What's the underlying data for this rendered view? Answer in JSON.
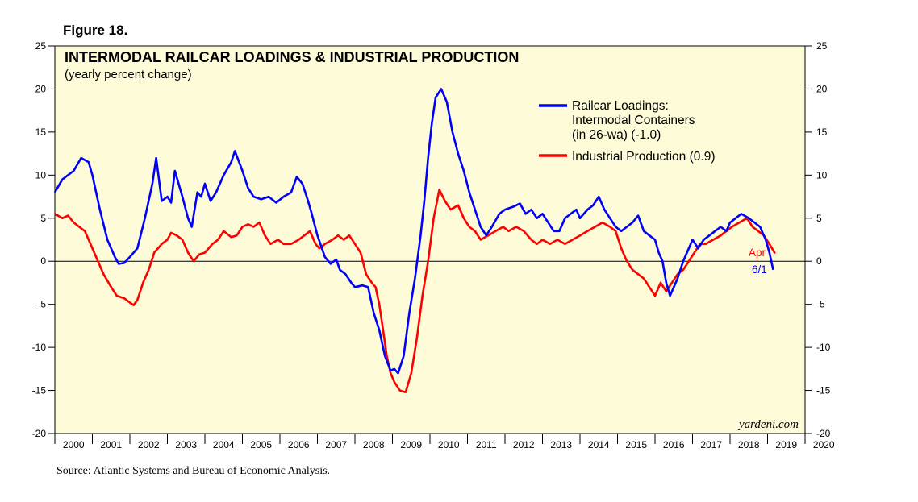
{
  "figure_label": "Figure 18.",
  "source": "Source: Atlantic Systems and Bureau of Economic Analysis.",
  "brand": "yardeni.com",
  "colors": {
    "background": "#fdfbd8",
    "blue": "#0000ff",
    "red": "#ff0000"
  },
  "chart_data": {
    "type": "line",
    "title": "INTERMODAL RAILCAR LOADINGS & INDUSTRIAL PRODUCTION",
    "subtitle": "(yearly percent change)",
    "xlabel": "",
    "ylabel": "",
    "xlim": [
      2000,
      2020
    ],
    "ylim": [
      -20,
      25
    ],
    "y_ticks": [
      25,
      20,
      15,
      10,
      5,
      0,
      -5,
      -10,
      -15,
      -20
    ],
    "x_tick_labels": [
      "2000",
      "2001",
      "2002",
      "2003",
      "2004",
      "2005",
      "2006",
      "2007",
      "2008",
      "2009",
      "2010",
      "2011",
      "2012",
      "2013",
      "2014",
      "2015",
      "2016",
      "2017",
      "2018",
      "2019",
      "2020"
    ],
    "zero_line": true,
    "series": [
      {
        "name": "Railcar Loadings: Intermodal Containers (in 26-wa) (-1.0)",
        "legend_lines": [
          "Railcar Loadings:",
          "Intermodal Containers",
          "(in 26-wa) (-1.0)"
        ],
        "color": "#0000ff",
        "end_label": "6/1",
        "points": [
          [
            2000.0,
            8.0
          ],
          [
            2000.2,
            9.5
          ],
          [
            2000.5,
            10.5
          ],
          [
            2000.7,
            12.0
          ],
          [
            2000.9,
            11.5
          ],
          [
            2001.0,
            10.0
          ],
          [
            2001.2,
            6.0
          ],
          [
            2001.4,
            2.5
          ],
          [
            2001.6,
            0.5
          ],
          [
            2001.7,
            -0.3
          ],
          [
            2001.85,
            -0.2
          ],
          [
            2002.0,
            0.5
          ],
          [
            2002.2,
            1.5
          ],
          [
            2002.4,
            5.0
          ],
          [
            2002.6,
            9.0
          ],
          [
            2002.7,
            12.0
          ],
          [
            2002.85,
            7.0
          ],
          [
            2003.0,
            7.5
          ],
          [
            2003.1,
            6.8
          ],
          [
            2003.2,
            10.5
          ],
          [
            2003.4,
            7.5
          ],
          [
            2003.55,
            5.0
          ],
          [
            2003.65,
            4.0
          ],
          [
            2003.8,
            8.0
          ],
          [
            2003.9,
            7.5
          ],
          [
            2004.0,
            9.0
          ],
          [
            2004.15,
            7.0
          ],
          [
            2004.3,
            8.0
          ],
          [
            2004.5,
            10.0
          ],
          [
            2004.7,
            11.5
          ],
          [
            2004.8,
            12.8
          ],
          [
            2005.0,
            10.5
          ],
          [
            2005.15,
            8.5
          ],
          [
            2005.3,
            7.5
          ],
          [
            2005.5,
            7.2
          ],
          [
            2005.7,
            7.5
          ],
          [
            2005.9,
            6.8
          ],
          [
            2006.1,
            7.5
          ],
          [
            2006.3,
            8.0
          ],
          [
            2006.45,
            9.8
          ],
          [
            2006.6,
            9.0
          ],
          [
            2006.75,
            7.0
          ],
          [
            2006.85,
            5.5
          ],
          [
            2007.0,
            3.0
          ],
          [
            2007.2,
            0.5
          ],
          [
            2007.35,
            -0.3
          ],
          [
            2007.5,
            0.2
          ],
          [
            2007.6,
            -1.0
          ],
          [
            2007.75,
            -1.5
          ],
          [
            2007.9,
            -2.5
          ],
          [
            2008.0,
            -3.0
          ],
          [
            2008.2,
            -2.8
          ],
          [
            2008.35,
            -3.0
          ],
          [
            2008.5,
            -6.0
          ],
          [
            2008.65,
            -8.0
          ],
          [
            2008.8,
            -11.0
          ],
          [
            2008.95,
            -12.7
          ],
          [
            2009.05,
            -12.5
          ],
          [
            2009.15,
            -13.0
          ],
          [
            2009.3,
            -11.0
          ],
          [
            2009.45,
            -6.0
          ],
          [
            2009.6,
            -2.0
          ],
          [
            2009.75,
            3.0
          ],
          [
            2009.85,
            7.0
          ],
          [
            2009.95,
            12.0
          ],
          [
            2010.05,
            16.0
          ],
          [
            2010.15,
            19.0
          ],
          [
            2010.3,
            20.0
          ],
          [
            2010.45,
            18.5
          ],
          [
            2010.6,
            15.0
          ],
          [
            2010.75,
            12.5
          ],
          [
            2010.9,
            10.5
          ],
          [
            2011.05,
            8.0
          ],
          [
            2011.2,
            6.0
          ],
          [
            2011.35,
            4.0
          ],
          [
            2011.5,
            3.0
          ],
          [
            2011.65,
            4.0
          ],
          [
            2011.85,
            5.5
          ],
          [
            2012.0,
            6.0
          ],
          [
            2012.2,
            6.3
          ],
          [
            2012.4,
            6.7
          ],
          [
            2012.55,
            5.5
          ],
          [
            2012.7,
            6.0
          ],
          [
            2012.85,
            5.0
          ],
          [
            2013.0,
            5.5
          ],
          [
            2013.15,
            4.5
          ],
          [
            2013.3,
            3.5
          ],
          [
            2013.45,
            3.5
          ],
          [
            2013.6,
            5.0
          ],
          [
            2013.75,
            5.5
          ],
          [
            2013.9,
            6.0
          ],
          [
            2014.0,
            5.0
          ],
          [
            2014.2,
            6.0
          ],
          [
            2014.35,
            6.5
          ],
          [
            2014.5,
            7.5
          ],
          [
            2014.65,
            6.0
          ],
          [
            2014.8,
            5.0
          ],
          [
            2014.95,
            4.0
          ],
          [
            2015.1,
            3.5
          ],
          [
            2015.25,
            4.0
          ],
          [
            2015.4,
            4.5
          ],
          [
            2015.55,
            5.3
          ],
          [
            2015.7,
            3.5
          ],
          [
            2015.85,
            3.0
          ],
          [
            2016.0,
            2.5
          ],
          [
            2016.1,
            1.0
          ],
          [
            2016.2,
            0.0
          ],
          [
            2016.3,
            -2.5
          ],
          [
            2016.4,
            -4.0
          ],
          [
            2016.5,
            -3.0
          ],
          [
            2016.6,
            -2.0
          ],
          [
            2016.75,
            0.0
          ],
          [
            2016.9,
            1.5
          ],
          [
            2017.0,
            2.5
          ],
          [
            2017.15,
            1.5
          ],
          [
            2017.3,
            2.5
          ],
          [
            2017.45,
            3.0
          ],
          [
            2017.6,
            3.5
          ],
          [
            2017.75,
            4.0
          ],
          [
            2017.9,
            3.5
          ],
          [
            2018.0,
            4.5
          ],
          [
            2018.15,
            5.0
          ],
          [
            2018.3,
            5.5
          ],
          [
            2018.5,
            5.0
          ],
          [
            2018.65,
            4.5
          ],
          [
            2018.8,
            4.0
          ],
          [
            2018.95,
            2.5
          ],
          [
            2019.05,
            1.0
          ],
          [
            2019.15,
            -1.0
          ]
        ]
      },
      {
        "name": "Industrial Production (0.9)",
        "legend_lines": [
          "Industrial Production (0.9)"
        ],
        "color": "#ff0000",
        "end_label": "Apr",
        "points": [
          [
            2000.0,
            5.5
          ],
          [
            2000.2,
            5.0
          ],
          [
            2000.35,
            5.3
          ],
          [
            2000.5,
            4.5
          ],
          [
            2000.65,
            4.0
          ],
          [
            2000.8,
            3.5
          ],
          [
            2000.95,
            2.0
          ],
          [
            2001.1,
            0.5
          ],
          [
            2001.3,
            -1.5
          ],
          [
            2001.5,
            -3.0
          ],
          [
            2001.65,
            -4.0
          ],
          [
            2001.85,
            -4.3
          ],
          [
            2002.0,
            -4.8
          ],
          [
            2002.1,
            -5.1
          ],
          [
            2002.2,
            -4.5
          ],
          [
            2002.35,
            -2.5
          ],
          [
            2002.5,
            -1.0
          ],
          [
            2002.65,
            1.0
          ],
          [
            2002.85,
            2.0
          ],
          [
            2003.0,
            2.5
          ],
          [
            2003.1,
            3.3
          ],
          [
            2003.25,
            3.0
          ],
          [
            2003.4,
            2.5
          ],
          [
            2003.55,
            1.0
          ],
          [
            2003.7,
            0.0
          ],
          [
            2003.85,
            0.8
          ],
          [
            2004.0,
            1.0
          ],
          [
            2004.2,
            2.0
          ],
          [
            2004.35,
            2.5
          ],
          [
            2004.5,
            3.5
          ],
          [
            2004.7,
            2.8
          ],
          [
            2004.85,
            3.0
          ],
          [
            2005.0,
            4.0
          ],
          [
            2005.15,
            4.3
          ],
          [
            2005.3,
            4.0
          ],
          [
            2005.45,
            4.5
          ],
          [
            2005.6,
            3.0
          ],
          [
            2005.75,
            2.0
          ],
          [
            2005.95,
            2.5
          ],
          [
            2006.1,
            2.0
          ],
          [
            2006.3,
            2.0
          ],
          [
            2006.5,
            2.5
          ],
          [
            2006.65,
            3.0
          ],
          [
            2006.8,
            3.5
          ],
          [
            2006.95,
            2.0
          ],
          [
            2007.05,
            1.5
          ],
          [
            2007.2,
            2.0
          ],
          [
            2007.4,
            2.5
          ],
          [
            2007.55,
            3.0
          ],
          [
            2007.7,
            2.5
          ],
          [
            2007.85,
            3.0
          ],
          [
            2008.0,
            2.0
          ],
          [
            2008.15,
            1.0
          ],
          [
            2008.3,
            -1.5
          ],
          [
            2008.45,
            -2.5
          ],
          [
            2008.55,
            -3.0
          ],
          [
            2008.65,
            -5.0
          ],
          [
            2008.75,
            -8.0
          ],
          [
            2008.85,
            -11.0
          ],
          [
            2008.95,
            -13.0
          ],
          [
            2009.05,
            -14.0
          ],
          [
            2009.2,
            -15.0
          ],
          [
            2009.35,
            -15.2
          ],
          [
            2009.5,
            -13.0
          ],
          [
            2009.65,
            -9.0
          ],
          [
            2009.8,
            -4.0
          ],
          [
            2009.95,
            0.0
          ],
          [
            2010.1,
            5.0
          ],
          [
            2010.25,
            8.3
          ],
          [
            2010.4,
            7.0
          ],
          [
            2010.55,
            6.0
          ],
          [
            2010.75,
            6.5
          ],
          [
            2010.9,
            5.0
          ],
          [
            2011.05,
            4.0
          ],
          [
            2011.2,
            3.5
          ],
          [
            2011.35,
            2.5
          ],
          [
            2011.55,
            3.0
          ],
          [
            2011.75,
            3.5
          ],
          [
            2011.95,
            4.0
          ],
          [
            2012.1,
            3.5
          ],
          [
            2012.3,
            4.0
          ],
          [
            2012.5,
            3.5
          ],
          [
            2012.7,
            2.5
          ],
          [
            2012.85,
            2.0
          ],
          [
            2013.0,
            2.5
          ],
          [
            2013.2,
            2.0
          ],
          [
            2013.4,
            2.5
          ],
          [
            2013.6,
            2.0
          ],
          [
            2013.8,
            2.5
          ],
          [
            2014.0,
            3.0
          ],
          [
            2014.2,
            3.5
          ],
          [
            2014.4,
            4.0
          ],
          [
            2014.6,
            4.5
          ],
          [
            2014.8,
            4.0
          ],
          [
            2014.95,
            3.5
          ],
          [
            2015.1,
            1.5
          ],
          [
            2015.25,
            0.0
          ],
          [
            2015.4,
            -1.0
          ],
          [
            2015.55,
            -1.5
          ],
          [
            2015.7,
            -2.0
          ],
          [
            2015.85,
            -3.0
          ],
          [
            2016.0,
            -4.0
          ],
          [
            2016.15,
            -2.5
          ],
          [
            2016.3,
            -3.5
          ],
          [
            2016.45,
            -2.5
          ],
          [
            2016.6,
            -1.5
          ],
          [
            2016.75,
            -1.0
          ],
          [
            2016.9,
            0.0
          ],
          [
            2017.05,
            1.0
          ],
          [
            2017.2,
            2.0
          ],
          [
            2017.35,
            2.0
          ],
          [
            2017.55,
            2.5
          ],
          [
            2017.75,
            3.0
          ],
          [
            2017.9,
            3.5
          ],
          [
            2018.05,
            4.0
          ],
          [
            2018.25,
            4.5
          ],
          [
            2018.45,
            5.0
          ],
          [
            2018.6,
            4.0
          ],
          [
            2018.75,
            3.5
          ],
          [
            2018.9,
            3.0
          ],
          [
            2019.05,
            2.0
          ],
          [
            2019.2,
            0.9
          ]
        ]
      }
    ]
  }
}
